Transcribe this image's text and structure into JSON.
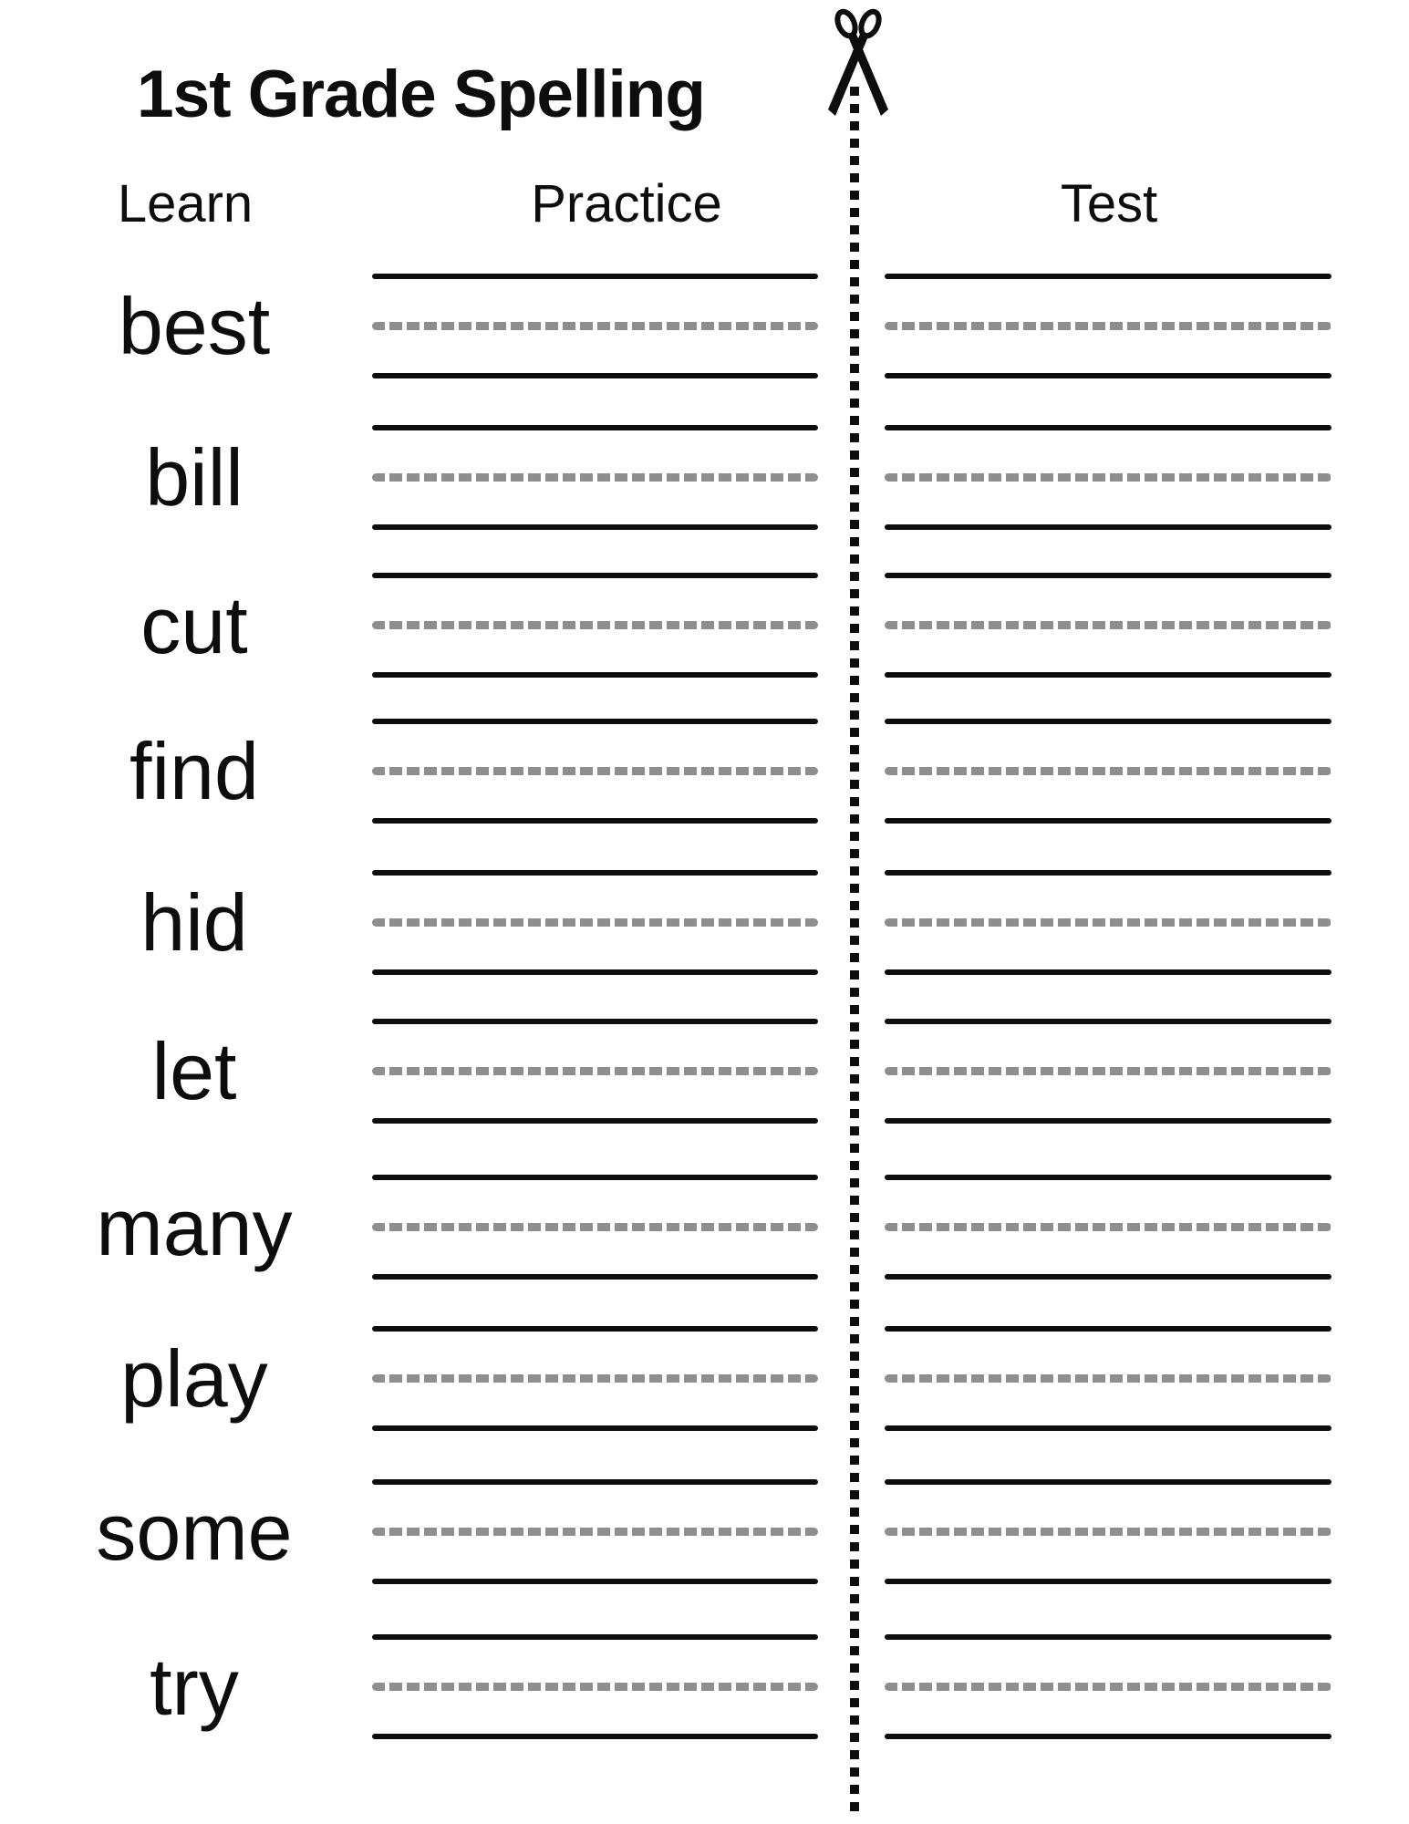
{
  "title": "1st Grade Spelling",
  "columns": {
    "learn": "Learn",
    "practice": "Practice",
    "test": "Test"
  },
  "words": [
    "best",
    "bill",
    "cut",
    "find",
    "hid",
    "let",
    "many",
    "play",
    "some",
    "try"
  ],
  "icons": {
    "scissors": "scissors-icon",
    "cut_line": "dotted-cut-line"
  },
  "colors": {
    "ink": "#0d0d0d",
    "dash_gray": "#8e8e8e",
    "paper": "#ffffff"
  }
}
